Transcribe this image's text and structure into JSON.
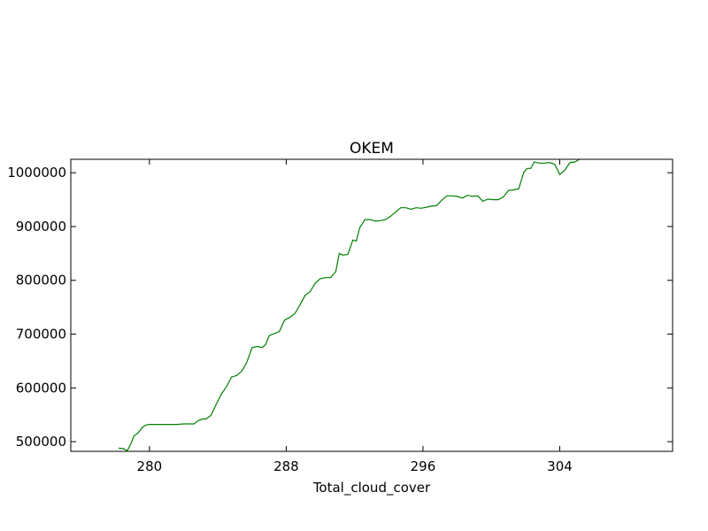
{
  "chart_data": {
    "type": "line",
    "title": "OKEM",
    "xlabel": "Total_cloud_cover",
    "ylabel": "",
    "xlim": [
      275.4,
      310.6
    ],
    "ylim": [
      482000,
      1025000
    ],
    "grid": false,
    "x_ticks": [
      280,
      288,
      296,
      304
    ],
    "x_tick_labels": [
      "280",
      "288",
      "296",
      "304"
    ],
    "y_ticks": [
      500000,
      600000,
      700000,
      800000,
      900000,
      1000000
    ],
    "y_tick_labels": [
      "500000",
      "600000",
      "700000",
      "800000",
      "900000",
      "1000000"
    ],
    "series_color": "#008000",
    "series": [
      {
        "x": [
          278.2,
          278.5,
          278.7,
          278.9,
          279.1,
          279.3,
          279.6,
          279.8,
          280.0,
          280.4,
          280.8,
          281.2,
          281.6,
          282.0,
          282.3,
          282.6,
          282.9,
          283.1,
          283.3,
          283.6,
          283.9,
          284.2,
          284.5,
          284.8,
          285.1,
          285.4,
          285.7,
          286.0,
          286.3,
          286.6,
          286.8,
          287.0,
          287.3,
          287.6,
          287.9,
          288.2,
          288.5,
          288.8,
          289.1,
          289.4,
          289.7,
          290.0,
          290.3,
          290.6,
          290.9,
          291.1,
          291.3,
          291.6,
          291.9,
          292.1,
          292.3,
          292.6,
          292.9,
          293.2,
          293.5,
          293.8,
          294.1,
          294.4,
          294.7,
          295.0,
          295.3,
          295.6,
          295.9,
          296.2,
          296.5,
          296.8,
          297.1,
          297.4,
          297.7,
          298.0,
          298.3,
          298.6,
          298.9,
          299.2,
          299.5,
          299.8,
          300.1,
          300.4,
          300.7,
          301.0,
          301.3,
          301.6,
          301.9,
          302.1,
          302.3,
          302.5,
          302.8,
          303.1,
          303.4,
          303.7,
          304.0,
          304.3,
          304.6,
          304.9,
          305.2,
          305.5,
          305.8,
          306.1
        ],
        "y": [
          488000,
          487000,
          483000,
          495000,
          511000,
          515000,
          527000,
          531000,
          532000,
          532000,
          532000,
          532000,
          532000,
          533000,
          533000,
          533000,
          540000,
          542000,
          542000,
          549000,
          569000,
          588000,
          602000,
          620000,
          623000,
          631000,
          648000,
          675000,
          677000,
          675000,
          681000,
          697000,
          701000,
          705000,
          726000,
          731000,
          738000,
          754000,
          772000,
          779000,
          795000,
          803000,
          805000,
          805000,
          816000,
          850000,
          847000,
          848000,
          875000,
          873000,
          898000,
          913000,
          913000,
          910000,
          911000,
          913000,
          919000,
          927000,
          935000,
          935000,
          932000,
          935000,
          934000,
          936000,
          938000,
          939000,
          949000,
          957000,
          957000,
          956000,
          953000,
          958000,
          956000,
          957000,
          947000,
          951000,
          950000,
          950000,
          955000,
          967000,
          968000,
          970000,
          1001000,
          1008000,
          1008000,
          1020000,
          1018000,
          1018000,
          1019000,
          1016000,
          997000,
          1005000,
          1019000,
          1020000,
          1026000,
          1026000,
          1026000,
          1026000
        ]
      }
    ]
  }
}
